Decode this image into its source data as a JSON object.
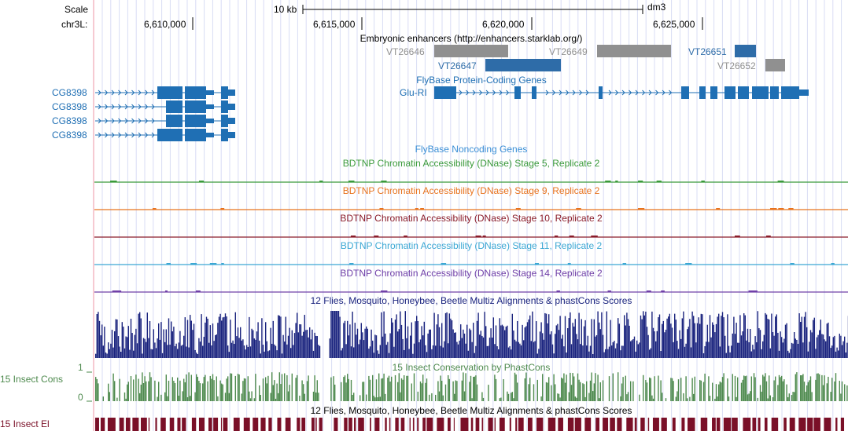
{
  "ruler": {
    "scale_label": "Scale",
    "scale_value": "10 kb",
    "assembly": "dm3",
    "chrom_label": "chr3L:",
    "ticks": [
      "6,610,000",
      "6,615,000",
      "6,620,000",
      "6,625,000"
    ]
  },
  "enhancers": {
    "title": "Embryonic enhancers (http://enhancers.starklab.org/)",
    "items": [
      {
        "name": "VT26646",
        "color": "#909090"
      },
      {
        "name": "VT26647",
        "color": "#2e6ca8"
      },
      {
        "name": "VT26649",
        "color": "#909090"
      },
      {
        "name": "VT26651",
        "color": "#2e6ca8"
      },
      {
        "name": "VT26652",
        "color": "#909090"
      }
    ]
  },
  "coding_genes": {
    "title": "FlyBase Protein-Coding Genes",
    "color": "#1f6fb4",
    "left_genes": [
      "CG8398",
      "CG8398",
      "CG8398",
      "CG8398"
    ],
    "right_gene": "Glu-RI"
  },
  "noncoding_genes": {
    "title": "FlyBase Noncoding Genes",
    "color": "#3b8fd6"
  },
  "dnase_tracks": [
    {
      "title": "BDTNP Chromatin Accessibility (DNase) Stage 5, Replicate 2",
      "color": "#3a9a3a"
    },
    {
      "title": "BDTNP Chromatin Accessibility (DNase) Stage 9, Replicate 2",
      "color": "#e8731e"
    },
    {
      "title": "BDTNP Chromatin Accessibility (DNase) Stage 10, Replicate 2",
      "color": "#8a1c2a"
    },
    {
      "title": "BDTNP Chromatin Accessibility (DNase) Stage 11, Replicate 2",
      "color": "#3ca8d4"
    },
    {
      "title": "BDTNP Chromatin Accessibility (DNase) Stage 14, Replicate 2",
      "color": "#7040a8"
    }
  ],
  "multiz": {
    "title": "12 Flies, Mosquito, Honeybee, Beetle Multiz Alignments & phastCons Scores",
    "color": "#1a237e"
  },
  "insect_cons": {
    "title": "15 Insect Conservation by PhastCons",
    "side_label": "15 Insect Cons",
    "scale_max": "1",
    "scale_min": "0",
    "color": "#4e8a4e"
  },
  "insect_el": {
    "title": "12 Flies, Mosquito, Honeybee, Beetle Multiz Alignments & phastCons Scores",
    "side_label": "15 Insect El",
    "color": "#7a1028"
  }
}
